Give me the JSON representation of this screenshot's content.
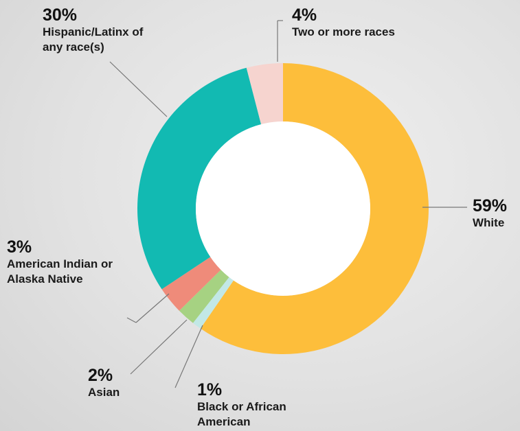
{
  "chart_data": {
    "type": "donut",
    "categories": [
      "White",
      "Black or African American",
      "Asian",
      "American Indian or Alaska Native",
      "Hispanic/Latinx of any race(s)",
      "Two or more races"
    ],
    "values": [
      59,
      1,
      2,
      3,
      30,
      4
    ],
    "value_labels": [
      "59%",
      "1%",
      "2%",
      "3%",
      "30%",
      "4%"
    ],
    "colors": [
      "#fdbe3b",
      "#c2e8e6",
      "#a6d282",
      "#ef8b7a",
      "#12bab2",
      "#f6d4cf"
    ]
  }
}
